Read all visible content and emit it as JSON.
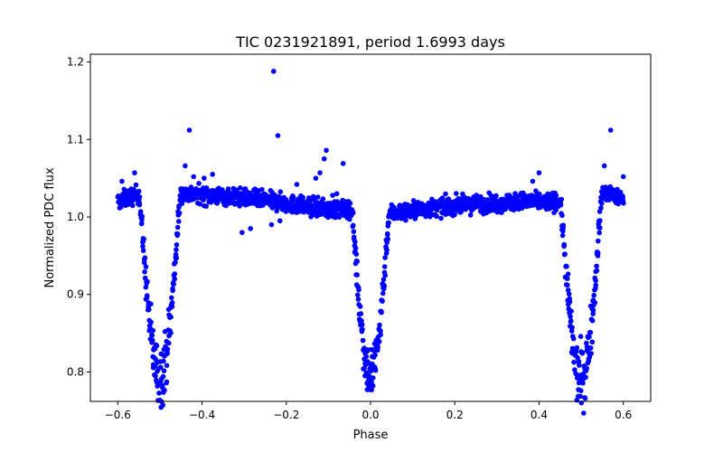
{
  "chart_data": {
    "type": "scatter",
    "title": "TIC 0231921891, period 1.6993 days",
    "xlabel": "Phase",
    "ylabel": "Normalized PDC flux",
    "xlim": [
      -0.665,
      0.665
    ],
    "ylim": [
      0.762,
      1.21
    ],
    "xticks": [
      -0.6,
      -0.4,
      -0.2,
      0.0,
      0.2,
      0.4,
      0.6
    ],
    "xtick_labels": [
      "−0.6",
      "−0.4",
      "−0.2",
      "0.0",
      "0.2",
      "0.4",
      "0.6"
    ],
    "yticks": [
      0.8,
      0.9,
      1.0,
      1.1,
      1.2
    ],
    "ytick_labels": [
      "0.8",
      "0.9",
      "1.0",
      "1.1",
      "1.2"
    ],
    "color": "#0000ff",
    "model": {
      "phase_range": [
        -0.6,
        0.6
      ],
      "primary_eclipse": {
        "center": 0.0,
        "depth": 0.21,
        "half_width": 0.045
      },
      "secondary_eclipses": [
        {
          "center": -0.5,
          "depth": 0.235,
          "half_width": 0.05
        },
        {
          "center": 0.5,
          "depth": 0.235,
          "half_width": 0.05
        }
      ],
      "out_of_eclipse": [
        {
          "x": -0.6,
          "y": 1.02
        },
        {
          "x": -0.55,
          "y": 1.03
        },
        {
          "x": -0.45,
          "y": 1.03
        },
        {
          "x": -0.3,
          "y": 1.025
        },
        {
          "x": -0.1,
          "y": 1.01
        },
        {
          "x": -0.05,
          "y": 1.01
        },
        {
          "x": 0.05,
          "y": 1.005
        },
        {
          "x": 0.2,
          "y": 1.015
        },
        {
          "x": 0.35,
          "y": 1.02
        },
        {
          "x": 0.45,
          "y": 1.02
        },
        {
          "x": 0.55,
          "y": 1.03
        },
        {
          "x": 0.6,
          "y": 1.025
        }
      ]
    },
    "outliers": [
      {
        "x": -0.23,
        "y": 1.188
      },
      {
        "x": -0.22,
        "y": 1.105
      },
      {
        "x": -0.43,
        "y": 1.112
      },
      {
        "x": 0.57,
        "y": 1.112
      },
      {
        "x": -0.105,
        "y": 1.086
      },
      {
        "x": -0.11,
        "y": 1.075
      },
      {
        "x": -0.065,
        "y": 1.069
      },
      {
        "x": -0.44,
        "y": 1.066
      },
      {
        "x": 0.555,
        "y": 1.066
      },
      {
        "x": -0.12,
        "y": 1.057
      },
      {
        "x": -0.56,
        "y": 1.057
      },
      {
        "x": 0.4,
        "y": 1.057
      },
      {
        "x": 0.6,
        "y": 1.052
      },
      {
        "x": -0.59,
        "y": 1.046
      },
      {
        "x": -0.375,
        "y": 1.055
      },
      {
        "x": -0.395,
        "y": 1.05
      },
      {
        "x": -0.42,
        "y": 1.052
      },
      {
        "x": 0.385,
        "y": 1.046
      },
      {
        "x": -0.305,
        "y": 0.98
      },
      {
        "x": -0.285,
        "y": 0.985
      },
      {
        "x": -0.235,
        "y": 0.99
      },
      {
        "x": -0.215,
        "y": 0.995
      },
      {
        "x": -0.175,
        "y": 1.042
      },
      {
        "x": -0.13,
        "y": 1.05
      },
      {
        "x": -0.09,
        "y": 1.028
      },
      {
        "x": -0.08,
        "y": 1.03
      }
    ]
  }
}
